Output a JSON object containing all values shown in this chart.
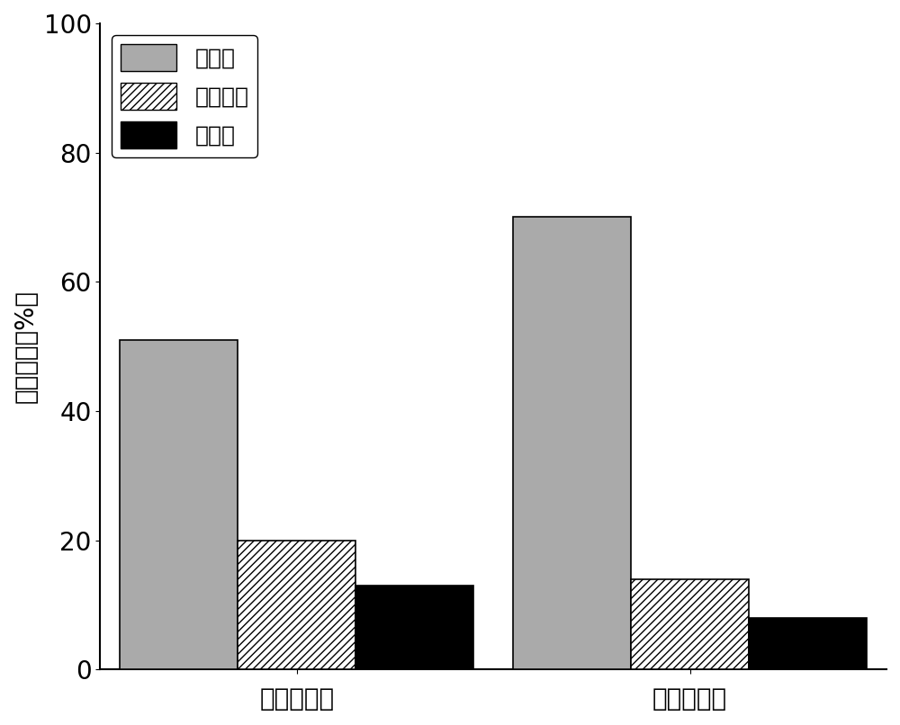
{
  "categories": [
    "未经预处理",
    "组合预处理"
  ],
  "series": {
    "纤素维": [
      51,
      70
    ],
    "半纤维素": [
      20,
      14
    ],
    "木素质": [
      13,
      8
    ]
  },
  "bar_colors": {
    "纤素维": "#aaaaaa",
    "半纤维素": "#ffffff",
    "木素质": "#000000"
  },
  "hatch_patterns": {
    "纤素维": "",
    "半纤维素": "////",
    "木素质": ""
  },
  "legend_labels": [
    "纤素维",
    "半纤维素",
    "木素质"
  ],
  "ylabel": "组成比例（%）",
  "ylim": [
    0,
    100
  ],
  "yticks": [
    0,
    20,
    40,
    60,
    80,
    100
  ],
  "bar_width": 0.15,
  "background_color": "#ffffff",
  "font_size_labels": 20,
  "font_size_ticks": 20,
  "font_size_legend": 18
}
